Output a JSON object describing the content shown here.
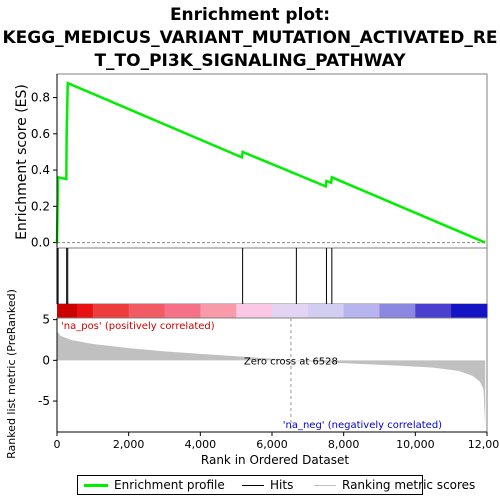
{
  "title_lines": [
    "Enrichment plot:",
    "KEGG_MEDICUS_VARIANT_MUTATION_ACTIVATED_RE",
    "T_TO_PI3K_SIGNALING_PATHWAY"
  ],
  "chart_data": {
    "type": "line",
    "x_range": [
      0,
      12000
    ],
    "x_ticks": [
      0,
      2000,
      4000,
      6000,
      8000,
      10000,
      12000
    ],
    "x_tick_labels": [
      "0",
      "2,000",
      "4,000",
      "6,000",
      "8,000",
      "10,000",
      "12,000"
    ],
    "xlabel": "Rank in Ordered Dataset",
    "enrichment": {
      "ylabel": "Enrichment score (ES)",
      "ylim": [
        -0.03,
        0.93
      ],
      "y_ticks": [
        0.0,
        0.2,
        0.4,
        0.6,
        0.8
      ],
      "y_tick_labels": [
        "0.0",
        "0.2",
        "0.4",
        "0.6",
        "0.8"
      ],
      "color": "#00ee00",
      "points": [
        [
          0,
          0.0
        ],
        [
          30,
          0.36
        ],
        [
          260,
          0.35
        ],
        [
          270,
          0.61
        ],
        [
          300,
          0.88
        ],
        [
          5160,
          0.47
        ],
        [
          5180,
          0.5
        ],
        [
          7500,
          0.31
        ],
        [
          7520,
          0.34
        ],
        [
          7650,
          0.33
        ],
        [
          7670,
          0.36
        ],
        [
          11950,
          0.0
        ]
      ]
    },
    "hits": [
      30,
      270,
      300,
      5180,
      6680,
      7520,
      7670
    ],
    "heatmap_colors": [
      "#e81010",
      "#ee3c3c",
      "#f25a64",
      "#f7708a",
      "#f89aa8",
      "#fac8e4",
      "#e4d4f4",
      "#d2cef2",
      "#b8b4ee",
      "#8a88e0",
      "#4a40d0",
      "#1414c4"
    ],
    "ranked_metric": {
      "ylabel": "Ranked list metric (PreRanked)",
      "ylim": [
        -8.8,
        5.2
      ],
      "y_ticks": [
        -5,
        0,
        5
      ],
      "y_tick_labels": [
        "-5",
        "0",
        "5"
      ],
      "fill_color": "#c0c0c0",
      "zero_cross": 6528,
      "zero_cross_label": "Zero cross at 6528",
      "points": [
        [
          0,
          3.6
        ],
        [
          100,
          3.0
        ],
        [
          400,
          2.5
        ],
        [
          1000,
          2.0
        ],
        [
          2000,
          1.5
        ],
        [
          3000,
          1.1
        ],
        [
          4000,
          0.8
        ],
        [
          5000,
          0.5
        ],
        [
          6000,
          0.2
        ],
        [
          6528,
          0.0
        ],
        [
          7500,
          -0.25
        ],
        [
          8500,
          -0.45
        ],
        [
          9500,
          -0.65
        ],
        [
          10500,
          -0.9
        ],
        [
          11200,
          -1.3
        ],
        [
          11600,
          -1.9
        ],
        [
          11800,
          -2.6
        ],
        [
          11900,
          -3.5
        ],
        [
          11950,
          -8.2
        ]
      ]
    },
    "pos_label": "'na_pos' (positively correlated)",
    "pos_color": "#cc0000",
    "neg_label": "'na_neg' (negatively correlated)",
    "neg_color": "#0000cc"
  },
  "legend": {
    "items": [
      {
        "label": "Enrichment profile",
        "color": "#00ee00"
      },
      {
        "label": "Hits",
        "color": "#000000"
      },
      {
        "label": "Ranking metric scores",
        "color": "#c0c0c0"
      }
    ]
  }
}
